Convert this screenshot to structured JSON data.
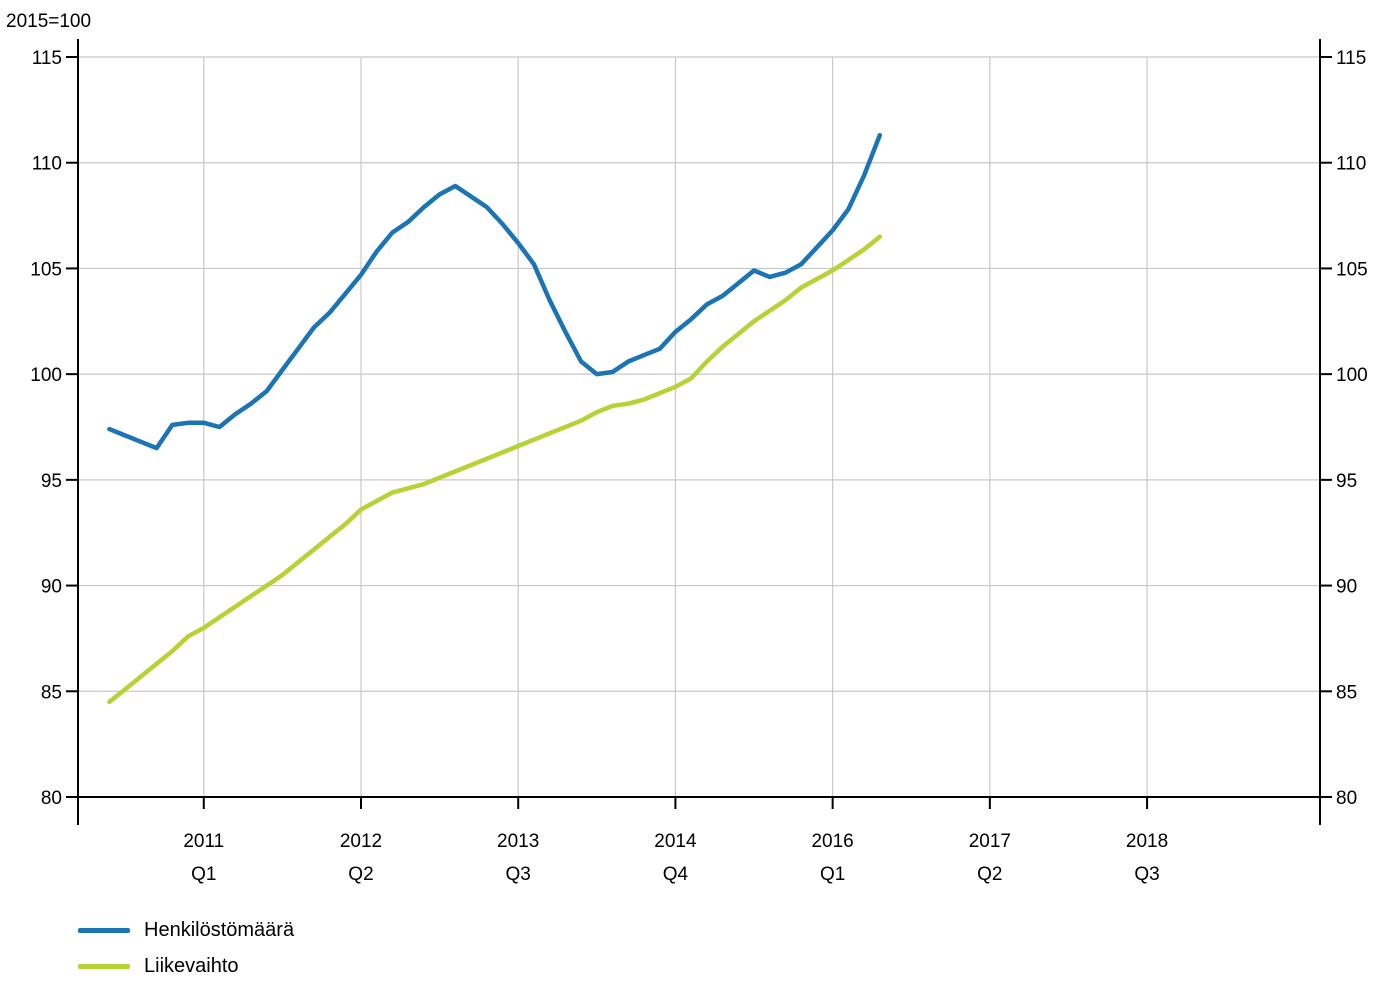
{
  "chart_data": {
    "type": "line",
    "unit_label": "2015=100",
    "ylim": [
      80,
      115
    ],
    "yticks": [
      80,
      85,
      90,
      95,
      100,
      105,
      110,
      115
    ],
    "x_start": 0,
    "x_end": 79,
    "xticks": [
      {
        "x": 8,
        "year": "2011",
        "quarter": "Q1"
      },
      {
        "x": 18,
        "year": "2012",
        "quarter": "Q2"
      },
      {
        "x": 28,
        "year": "2013",
        "quarter": "Q3"
      },
      {
        "x": 38,
        "year": "2014",
        "quarter": "Q4"
      },
      {
        "x": 48,
        "year": "2016",
        "quarter": "Q1"
      },
      {
        "x": 58,
        "year": "2017",
        "quarter": "Q2"
      },
      {
        "x": 68,
        "year": "2018",
        "quarter": "Q3"
      }
    ],
    "grid": true,
    "legend_position": "bottom-left",
    "series": [
      {
        "name": "Henkilöstömäärä",
        "color": "#1B75B5",
        "points": [
          [
            2,
            97.4
          ],
          [
            3,
            97.1
          ],
          [
            4,
            96.8
          ],
          [
            5,
            96.5
          ],
          [
            6,
            97.6
          ],
          [
            7,
            97.7
          ],
          [
            8,
            97.7
          ],
          [
            9,
            97.5
          ],
          [
            10,
            98.1
          ],
          [
            11,
            98.6
          ],
          [
            12,
            99.2
          ],
          [
            13,
            100.2
          ],
          [
            14,
            101.2
          ],
          [
            15,
            102.2
          ],
          [
            16,
            102.9
          ],
          [
            17,
            103.8
          ],
          [
            18,
            104.7
          ],
          [
            19,
            105.8
          ],
          [
            20,
            106.7
          ],
          [
            21,
            107.2
          ],
          [
            22,
            107.9
          ],
          [
            23,
            108.5
          ],
          [
            24,
            108.9
          ],
          [
            25,
            108.4
          ],
          [
            26,
            107.9
          ],
          [
            27,
            107.1
          ],
          [
            28,
            106.2
          ],
          [
            29,
            105.2
          ],
          [
            30,
            103.5
          ],
          [
            31,
            102.0
          ],
          [
            32,
            100.6
          ],
          [
            33,
            100.0
          ],
          [
            34,
            100.1
          ],
          [
            35,
            100.6
          ],
          [
            36,
            100.9
          ],
          [
            37,
            101.2
          ],
          [
            38,
            102.0
          ],
          [
            39,
            102.6
          ],
          [
            40,
            103.3
          ],
          [
            41,
            103.7
          ],
          [
            42,
            104.3
          ],
          [
            43,
            104.9
          ],
          [
            44,
            104.6
          ],
          [
            45,
            104.8
          ],
          [
            46,
            105.2
          ],
          [
            47,
            106.0
          ],
          [
            48,
            106.8
          ],
          [
            49,
            107.8
          ],
          [
            50,
            109.4
          ],
          [
            51,
            111.3
          ]
        ]
      },
      {
        "name": "Liikevaihto",
        "color": "#B5D334",
        "points": [
          [
            2,
            84.5
          ],
          [
            3,
            85.1
          ],
          [
            4,
            85.7
          ],
          [
            5,
            86.3
          ],
          [
            6,
            86.9
          ],
          [
            7,
            87.6
          ],
          [
            8,
            88.0
          ],
          [
            9,
            88.5
          ],
          [
            10,
            89.0
          ],
          [
            11,
            89.5
          ],
          [
            12,
            90.0
          ],
          [
            13,
            90.5
          ],
          [
            14,
            91.1
          ],
          [
            15,
            91.7
          ],
          [
            16,
            92.3
          ],
          [
            17,
            92.9
          ],
          [
            18,
            93.6
          ],
          [
            19,
            94.0
          ],
          [
            20,
            94.4
          ],
          [
            21,
            94.6
          ],
          [
            22,
            94.8
          ],
          [
            23,
            95.1
          ],
          [
            24,
            95.4
          ],
          [
            25,
            95.7
          ],
          [
            26,
            96.0
          ],
          [
            27,
            96.3
          ],
          [
            28,
            96.6
          ],
          [
            29,
            96.9
          ],
          [
            30,
            97.2
          ],
          [
            31,
            97.5
          ],
          [
            32,
            97.8
          ],
          [
            33,
            98.2
          ],
          [
            34,
            98.5
          ],
          [
            35,
            98.6
          ],
          [
            36,
            98.8
          ],
          [
            37,
            99.1
          ],
          [
            38,
            99.4
          ],
          [
            39,
            99.8
          ],
          [
            40,
            100.6
          ],
          [
            41,
            101.3
          ],
          [
            42,
            101.9
          ],
          [
            43,
            102.5
          ],
          [
            44,
            103.0
          ],
          [
            45,
            103.5
          ],
          [
            46,
            104.1
          ],
          [
            47,
            104.5
          ],
          [
            48,
            104.9
          ],
          [
            49,
            105.4
          ],
          [
            50,
            105.9
          ],
          [
            51,
            106.5
          ]
        ]
      }
    ]
  }
}
